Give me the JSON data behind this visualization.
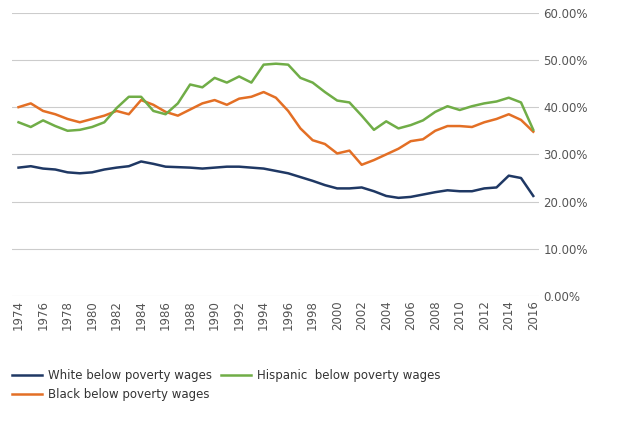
{
  "years": [
    1974,
    1975,
    1976,
    1977,
    1978,
    1979,
    1980,
    1981,
    1982,
    1983,
    1984,
    1985,
    1986,
    1987,
    1988,
    1989,
    1990,
    1991,
    1992,
    1993,
    1994,
    1995,
    1996,
    1997,
    1998,
    1999,
    2000,
    2001,
    2002,
    2003,
    2004,
    2005,
    2006,
    2007,
    2008,
    2009,
    2010,
    2011,
    2012,
    2013,
    2014,
    2015,
    2016
  ],
  "white": [
    0.272,
    0.275,
    0.27,
    0.268,
    0.262,
    0.26,
    0.262,
    0.268,
    0.272,
    0.275,
    0.285,
    0.28,
    0.274,
    0.273,
    0.272,
    0.27,
    0.272,
    0.274,
    0.274,
    0.272,
    0.27,
    0.265,
    0.26,
    0.252,
    0.244,
    0.235,
    0.228,
    0.228,
    0.23,
    0.222,
    0.212,
    0.208,
    0.21,
    0.215,
    0.22,
    0.224,
    0.222,
    0.222,
    0.228,
    0.23,
    0.255,
    0.25,
    0.212
  ],
  "black": [
    0.4,
    0.408,
    0.392,
    0.385,
    0.375,
    0.368,
    0.375,
    0.382,
    0.392,
    0.385,
    0.415,
    0.405,
    0.39,
    0.382,
    0.395,
    0.408,
    0.415,
    0.405,
    0.418,
    0.422,
    0.432,
    0.42,
    0.392,
    0.355,
    0.33,
    0.322,
    0.302,
    0.308,
    0.278,
    0.288,
    0.3,
    0.312,
    0.328,
    0.332,
    0.35,
    0.36,
    0.36,
    0.358,
    0.368,
    0.375,
    0.385,
    0.373,
    0.348
  ],
  "hispanic": [
    0.368,
    0.358,
    0.372,
    0.36,
    0.35,
    0.352,
    0.358,
    0.368,
    0.398,
    0.422,
    0.422,
    0.392,
    0.385,
    0.408,
    0.448,
    0.442,
    0.462,
    0.452,
    0.465,
    0.452,
    0.49,
    0.492,
    0.49,
    0.462,
    0.452,
    0.432,
    0.414,
    0.41,
    0.382,
    0.352,
    0.37,
    0.355,
    0.362,
    0.372,
    0.39,
    0.402,
    0.394,
    0.402,
    0.408,
    0.412,
    0.42,
    0.41,
    0.352
  ],
  "xtick_years": [
    1974,
    1976,
    1978,
    1980,
    1982,
    1984,
    1986,
    1988,
    1990,
    1992,
    1994,
    1996,
    1998,
    2000,
    2002,
    2004,
    2006,
    2008,
    2010,
    2012,
    2014,
    2016
  ],
  "white_color": "#1f3864",
  "black_color": "#e36f25",
  "hispanic_color": "#70ad47",
  "white_label": "White below poverty wages",
  "black_label": "Black below poverty wages",
  "hispanic_label": "Hispanic  below poverty wages",
  "ylim": [
    0.0,
    0.6
  ],
  "yticks": [
    0.0,
    0.1,
    0.2,
    0.3,
    0.4,
    0.5,
    0.6
  ],
  "ytick_labels": [
    "0.00%",
    "10.00%",
    "20.00%",
    "30.00%",
    "40.00%",
    "50.00%",
    "60.00%"
  ],
  "line_width": 1.8,
  "background_color": "#ffffff",
  "grid_color": "#cccccc"
}
